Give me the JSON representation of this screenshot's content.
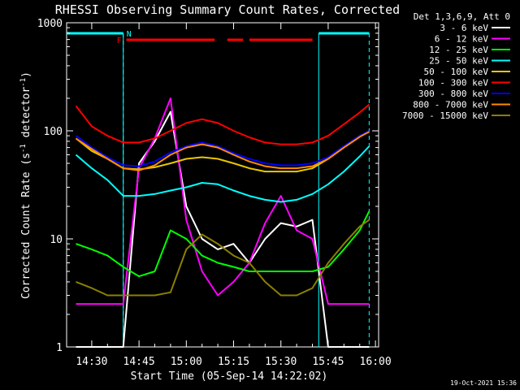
{
  "chart_data": {
    "type": "line",
    "title": "RHESSI Observing Summary Count Rates, Corrected",
    "xlabel": "Start Time (05-Sep-14 14:22:02)",
    "ylabel": "Corrected Count Rate (s⁻¹ detector⁻¹)",
    "ylabel_main": "Corrected Count Rate (s",
    "ylabel_sup1": "-1",
    "ylabel_mid": " detector",
    "ylabel_sup2": "-1",
    "ylabel_end": ")",
    "yscale": "log",
    "ylim": [
      1,
      1000
    ],
    "xlim": [
      "14:22:02",
      "16:01:00"
    ],
    "xticks": [
      "14:30",
      "14:45",
      "15:00",
      "15:15",
      "15:30",
      "15:45",
      "16:00"
    ],
    "yticks": [
      "1",
      "10",
      "100",
      "1000"
    ],
    "legend_header": "Det 1,3,6,9, Att 0",
    "legend_placement": "right",
    "timestamp": "19-Oct-2021 15:36",
    "markers": {
      "night_label": "N",
      "flare_label": "F",
      "night_start": "14:22:02",
      "night_end": "14:40:00",
      "night2_start": "15:42:00",
      "night2_end": "15:58:00",
      "flare_segments": [
        [
          "14:41",
          "15:09"
        ],
        [
          "15:13",
          "15:18"
        ],
        [
          "15:20",
          "15:40"
        ]
      ]
    },
    "x": [
      "14:25",
      "14:30",
      "14:35",
      "14:40",
      "14:45",
      "14:50",
      "14:55",
      "15:00",
      "15:05",
      "15:10",
      "15:15",
      "15:20",
      "15:25",
      "15:30",
      "15:35",
      "15:40",
      "15:45",
      "15:50",
      "15:55",
      "15:58"
    ],
    "series": [
      {
        "name": "3 - 6 keV",
        "color": "#ffffff",
        "values": [
          1,
          1,
          1,
          1,
          50,
          80,
          150,
          20,
          10,
          8,
          9,
          6,
          10,
          14,
          13,
          15,
          1,
          1,
          1,
          1
        ]
      },
      {
        "name": "6 - 12 keV",
        "color": "#ff00ff",
        "values": [
          2.5,
          2.5,
          2.5,
          2.5,
          45,
          85,
          200,
          15,
          5,
          3,
          4,
          6,
          14,
          25,
          12,
          10,
          2.5,
          2.5,
          2.5,
          2.5
        ]
      },
      {
        "name": "12 - 25 keV",
        "color": "#00ff00",
        "values": [
          9,
          8,
          7,
          5.5,
          4.5,
          5,
          12,
          10,
          7,
          6,
          5.5,
          5,
          5,
          5,
          5,
          5,
          5.5,
          8,
          12,
          18
        ]
      },
      {
        "name": "25 - 50 keV",
        "color": "#00ffff",
        "values": [
          60,
          45,
          35,
          25,
          25,
          26,
          28,
          30,
          33,
          32,
          28,
          25,
          23,
          22,
          23,
          26,
          32,
          42,
          58,
          72
        ]
      },
      {
        "name": "50 - 100 keV",
        "color": "#e8c800",
        "values": [
          85,
          65,
          55,
          45,
          44,
          46,
          50,
          55,
          57,
          55,
          50,
          45,
          42,
          42,
          42,
          45,
          55,
          70,
          88,
          100
        ]
      },
      {
        "name": "100 - 300 keV",
        "color": "#ff0000",
        "values": [
          170,
          110,
          90,
          78,
          78,
          85,
          100,
          118,
          128,
          118,
          100,
          87,
          78,
          75,
          75,
          78,
          90,
          115,
          148,
          175
        ]
      },
      {
        "name": "300 - 800 keV",
        "color": "#0000ff",
        "values": [
          90,
          70,
          57,
          48,
          47,
          52,
          63,
          72,
          78,
          72,
          62,
          55,
          50,
          48,
          48,
          50,
          57,
          72,
          90,
          100
        ]
      },
      {
        "name": "800 - 7000 keV",
        "color": "#ff8c00",
        "values": [
          85,
          68,
          55,
          45,
          43,
          48,
          60,
          70,
          75,
          70,
          60,
          52,
          47,
          45,
          45,
          47,
          55,
          70,
          88,
          98
        ]
      },
      {
        "name": "7000 - 15000 keV",
        "color": "#8b8000",
        "values": [
          4,
          3.5,
          3,
          3,
          3,
          3,
          3.2,
          8,
          11,
          9,
          7,
          6,
          4,
          3,
          3,
          3.5,
          6,
          9,
          13,
          15
        ]
      }
    ]
  }
}
